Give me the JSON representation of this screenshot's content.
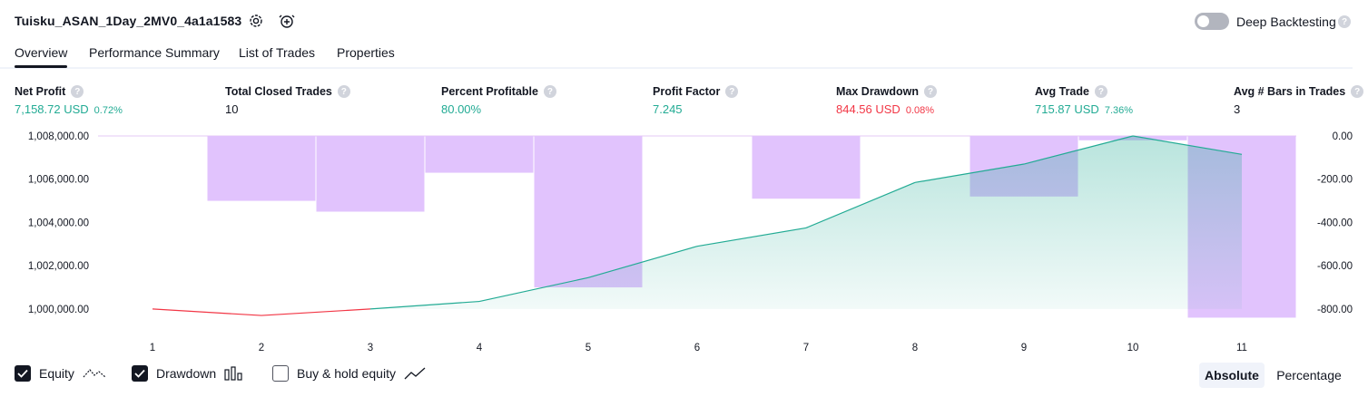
{
  "header": {
    "title": "Tuisku_ASAN_1Day_2MV0_4a1a1583",
    "deep_backtesting_label": "Deep Backtesting",
    "help_glyph": "?"
  },
  "tabs": [
    {
      "label": "Overview",
      "active": true
    },
    {
      "label": "Performance Summary",
      "active": false
    },
    {
      "label": "List of Trades",
      "active": false
    },
    {
      "label": "Properties",
      "active": false
    }
  ],
  "metrics": [
    {
      "label": "Net Profit",
      "value": "7,158.72 USD",
      "sub": "0.72%",
      "color": "green"
    },
    {
      "label": "Total Closed Trades",
      "value": "10",
      "sub": "",
      "color": "dark"
    },
    {
      "label": "Percent Profitable",
      "value": "80.00%",
      "sub": "",
      "color": "green"
    },
    {
      "label": "Profit Factor",
      "value": "7.245",
      "sub": "",
      "color": "green"
    },
    {
      "label": "Max Drawdown",
      "value": "844.56 USD",
      "sub": "0.08%",
      "color": "red"
    },
    {
      "label": "Avg Trade",
      "value": "715.87 USD",
      "sub": "7.36%",
      "color": "green"
    },
    {
      "label": "Avg # Bars in Trades",
      "value": "3",
      "sub": "",
      "color": "dark"
    }
  ],
  "colors": {
    "green": "#22ab94",
    "red": "#f23645",
    "drawdown_bar": "#e1c3fd",
    "equity_fill": "#cfeee7"
  },
  "chart_data": {
    "type": "area",
    "x": [
      1,
      2,
      3,
      4,
      5,
      6,
      7,
      8,
      9,
      10,
      11
    ],
    "series": [
      {
        "name": "Equity",
        "axis": "left",
        "values": [
          1000000,
          999700,
          1000000,
          1000350,
          1001450,
          1002900,
          1003750,
          1005850,
          1006700,
          1008000,
          1007150
        ]
      },
      {
        "name": "Drawdown",
        "axis": "right",
        "type": "bar",
        "values": [
          0,
          -300,
          -350,
          -170,
          -700,
          0,
          -290,
          0,
          -280,
          -20,
          -840
        ]
      }
    ],
    "left_axis": {
      "ticks": [
        "1,008,000.00",
        "1,006,000.00",
        "1,004,000.00",
        "1,002,000.00",
        "1,000,000.00"
      ],
      "ylim": [
        999200,
        1008000
      ]
    },
    "right_axis": {
      "ticks": [
        "0.00",
        "-200.00",
        "-400.00",
        "-600.00",
        "-800.00"
      ],
      "ylim": [
        -880,
        0
      ]
    }
  },
  "legend": [
    {
      "label": "Equity",
      "checked": true,
      "icon": "equity-line-icon"
    },
    {
      "label": "Drawdown",
      "checked": true,
      "icon": "drawdown-bars-icon"
    },
    {
      "label": "Buy & hold equity",
      "checked": false,
      "icon": "trend-line-icon"
    }
  ],
  "scale_modes": [
    {
      "label": "Absolute",
      "active": true
    },
    {
      "label": "Percentage",
      "active": false
    }
  ]
}
